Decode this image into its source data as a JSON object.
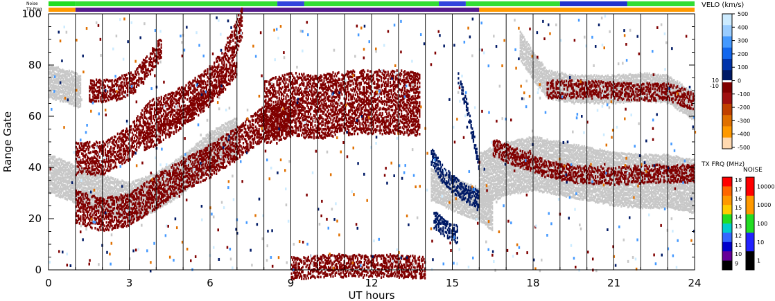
{
  "chart_data": {
    "type": "heatmap",
    "xlabel": "UT hours",
    "ylabel": "Range Gate",
    "xlim": [
      0,
      24
    ],
    "ylim": [
      0,
      100
    ],
    "xticks": [
      "0",
      "3",
      "6",
      "9",
      "12",
      "15",
      "18",
      "21",
      "24"
    ],
    "yticks": [
      "0",
      "20",
      "40",
      "60",
      "80",
      "100"
    ],
    "grid": "vertical lines each UT hour",
    "top_bars": {
      "noise_label": "Noise",
      "txfreq_label": "TX Freq",
      "noise_segments": [
        {
          "from": 0,
          "to": 1,
          "color": "#22dd22"
        },
        {
          "from": 1,
          "to": 8.5,
          "color": "#33dd33"
        },
        {
          "from": 8.5,
          "to": 9.5,
          "color": "#3344dd"
        },
        {
          "from": 9.5,
          "to": 14.5,
          "color": "#33dd33"
        },
        {
          "from": 14.5,
          "to": 15.5,
          "color": "#3344dd"
        },
        {
          "from": 15.5,
          "to": 19,
          "color": "#33dd33"
        },
        {
          "from": 19,
          "to": 21.5,
          "color": "#2233cc"
        },
        {
          "from": 21.5,
          "to": 24,
          "color": "#33dd33"
        }
      ],
      "txfreq_segments": [
        {
          "from": 0,
          "to": 1,
          "color": "#ff9900"
        },
        {
          "from": 1,
          "to": 16,
          "color": "#551a8b"
        },
        {
          "from": 16,
          "to": 24,
          "color": "#ff9900"
        }
      ]
    },
    "velocity_scale": {
      "title": "VELO (km/s)",
      "ticks": [
        "500",
        "400",
        "300",
        "200",
        "100",
        "0",
        "-100",
        "-200",
        "-300",
        "-400",
        "-500"
      ],
      "side_ticks": [
        "10",
        "-10"
      ],
      "colors": [
        "#ccebff",
        "#99ccff",
        "#4499ff",
        "#1166ee",
        "#0033aa",
        "#001a66",
        "#800000",
        "#a01010",
        "#c04000",
        "#e07000",
        "#ff9900",
        "#ffd9b0"
      ]
    },
    "txfreq_scale": {
      "title": "TX FRQ (MHz)",
      "ticks": [
        "18",
        "17",
        "16",
        "15",
        "14",
        "13",
        "12",
        "11",
        "10",
        "9"
      ],
      "colors": [
        "#ff0000",
        "#ff6600",
        "#ff9900",
        "#ffcc00",
        "#22dd22",
        "#00cccc",
        "#3366ff",
        "#0000cc",
        "#660099",
        "#000000"
      ]
    },
    "noise_scale": {
      "title": "NOISE",
      "ticks": [
        "10000",
        "1000",
        "100",
        "10",
        "1"
      ],
      "colors": [
        "#ff0000",
        "#ff9900",
        "#22dd22",
        "#2222ff",
        "#000000"
      ]
    },
    "series": [
      {
        "kind": "ground",
        "color": "#c8c8c8",
        "points": [
          [
            0,
            38
          ],
          [
            1,
            34
          ],
          [
            2,
            30
          ],
          [
            3,
            27
          ],
          [
            4,
            31
          ],
          [
            5,
            38
          ],
          [
            6,
            47
          ],
          [
            7,
            53
          ]
        ],
        "width": 7
      },
      {
        "kind": "ground",
        "color": "#c8c8c8",
        "points": [
          [
            0,
            74
          ],
          [
            0.7,
            72
          ],
          [
            1.2,
            70
          ]
        ],
        "width": 6
      },
      {
        "kind": "ground",
        "color": "#c8c8c8",
        "points": [
          [
            14.2,
            34
          ],
          [
            15,
            30
          ],
          [
            16,
            26
          ],
          [
            16.5,
            22
          ]
        ],
        "width": 6
      },
      {
        "kind": "ground",
        "color": "#c8c8c8",
        "points": [
          [
            16,
            36
          ],
          [
            17,
            40
          ],
          [
            18,
            42
          ],
          [
            19,
            40
          ],
          [
            20,
            38
          ],
          [
            21,
            36
          ],
          [
            22,
            35
          ],
          [
            23,
            35
          ],
          [
            24,
            33
          ]
        ],
        "width": 10
      },
      {
        "kind": "ground",
        "color": "#c8c8c8",
        "points": [
          [
            17.5,
            88
          ],
          [
            18,
            80
          ],
          [
            18.5,
            73
          ],
          [
            19.5,
            71
          ],
          [
            21,
            71
          ],
          [
            22,
            72
          ],
          [
            23,
            71
          ],
          [
            24,
            64
          ]
        ],
        "width": 5
      },
      {
        "kind": "velo",
        "color": "#800000",
        "points": [
          [
            1,
            25
          ],
          [
            2,
            22
          ],
          [
            3,
            24
          ],
          [
            4,
            31
          ],
          [
            5,
            38
          ],
          [
            6,
            43
          ],
          [
            7,
            50
          ],
          [
            8,
            58
          ],
          [
            9,
            60
          ]
        ],
        "width": 6
      },
      {
        "kind": "velo",
        "color": "#800000",
        "points": [
          [
            1,
            44
          ],
          [
            2,
            44
          ],
          [
            3,
            50
          ],
          [
            3.7,
            60
          ],
          [
            4.5,
            63
          ],
          [
            5,
            66
          ],
          [
            5.8,
            72
          ],
          [
            6.5,
            80
          ],
          [
            7.2,
            98
          ]
        ],
        "width": 6
      },
      {
        "kind": "velo",
        "color": "#800000",
        "points": [
          [
            1.5,
            70
          ],
          [
            2.5,
            71
          ],
          [
            3.2,
            74
          ],
          [
            3.8,
            82
          ],
          [
            4.2,
            88
          ]
        ],
        "width": 4
      },
      {
        "kind": "velo",
        "color": "#800000",
        "points": [
          [
            3.5,
            50
          ],
          [
            4.2,
            54
          ],
          [
            4.8,
            58
          ],
          [
            5.5,
            64
          ],
          [
            6,
            68
          ],
          [
            6.5,
            74
          ],
          [
            7,
            80
          ]
        ],
        "width": 3
      },
      {
        "kind": "velo",
        "color": "#800000",
        "points": [
          [
            8,
            62
          ],
          [
            9,
            65
          ],
          [
            10,
            64
          ],
          [
            11,
            66
          ],
          [
            12,
            66
          ],
          [
            13,
            66
          ],
          [
            13.8,
            65
          ]
        ],
        "width": 12
      },
      {
        "kind": "velo",
        "color": "#800000",
        "points": [
          [
            9,
            1
          ],
          [
            10,
            2
          ],
          [
            11,
            2
          ],
          [
            12,
            2
          ],
          [
            13,
            2
          ],
          [
            14,
            1
          ]
        ],
        "width": 4
      },
      {
        "kind": "velo",
        "color": "#800000",
        "points": [
          [
            16.5,
            48
          ],
          [
            17.5,
            44
          ],
          [
            18.5,
            40
          ],
          [
            19.5,
            38
          ],
          [
            21,
            37
          ],
          [
            22.5,
            38
          ],
          [
            24,
            38
          ]
        ],
        "width": 3
      },
      {
        "kind": "velo",
        "color": "#800000",
        "points": [
          [
            18.5,
            71
          ],
          [
            20,
            71
          ],
          [
            21.5,
            70
          ],
          [
            23,
            70
          ],
          [
            24,
            66
          ]
        ],
        "width": 3
      },
      {
        "kind": "velo",
        "color": "#001a66",
        "points": [
          [
            14.2,
            45
          ],
          [
            14.6,
            38
          ],
          [
            15,
            34
          ],
          [
            15.5,
            30
          ],
          [
            16,
            28
          ]
        ],
        "width": 3
      },
      {
        "kind": "velo",
        "color": "#001a66",
        "points": [
          [
            15.2,
            75
          ],
          [
            15.5,
            65
          ],
          [
            15.8,
            50
          ],
          [
            16,
            40
          ]
        ],
        "width": 2
      },
      {
        "kind": "velo",
        "color": "#001a66",
        "points": [
          [
            14.3,
            20
          ],
          [
            14.8,
            16
          ],
          [
            15.2,
            14
          ]
        ],
        "width": 3
      }
    ]
  }
}
